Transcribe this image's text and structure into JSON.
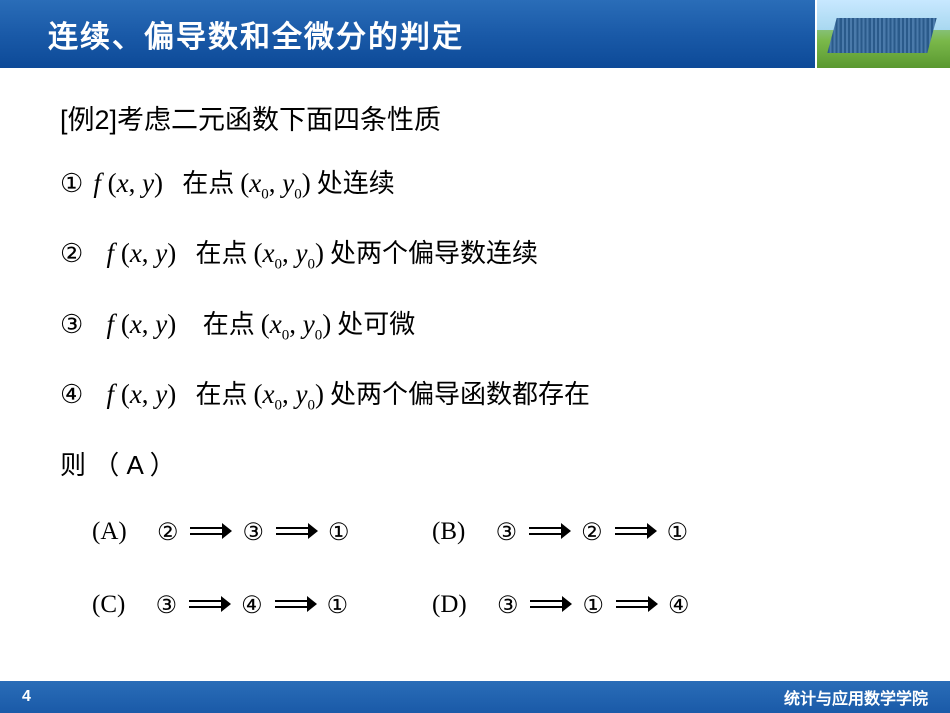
{
  "header": {
    "title": "连续、偏导数和全微分的判定"
  },
  "example": {
    "label": "[例2]",
    "intro": "考虑二元函数下面四条性质"
  },
  "properties": [
    {
      "num": "①",
      "func": "f (x, y)",
      "pre": "在点",
      "point": "(x₀, y₀)",
      "post": "处连续"
    },
    {
      "num": "②",
      "func": "f (x, y)",
      "pre": "在点",
      "point": "(x₀, y₀)",
      "post": "处两个偏导数连续"
    },
    {
      "num": "③",
      "func": "f (x, y)",
      "pre": "在点",
      "point": "(x₀, y₀)",
      "post": "处可微"
    },
    {
      "num": "④",
      "func": "f (x, y)",
      "pre": "在点",
      "point": "(x₀, y₀)",
      "post": "处两个偏导函数都存在"
    }
  ],
  "then": {
    "text": "则 （ A ）"
  },
  "options": [
    {
      "label": "(A)",
      "chain": [
        "②",
        "③",
        "①"
      ]
    },
    {
      "label": "(B)",
      "chain": [
        "③",
        "②",
        "①"
      ]
    },
    {
      "label": "(C)",
      "chain": [
        "③",
        "④",
        "①"
      ]
    },
    {
      "label": "(D)",
      "chain": [
        "③",
        "①",
        "④"
      ]
    }
  ],
  "footer": {
    "page": "4",
    "org": "统计与应用数学学院"
  }
}
